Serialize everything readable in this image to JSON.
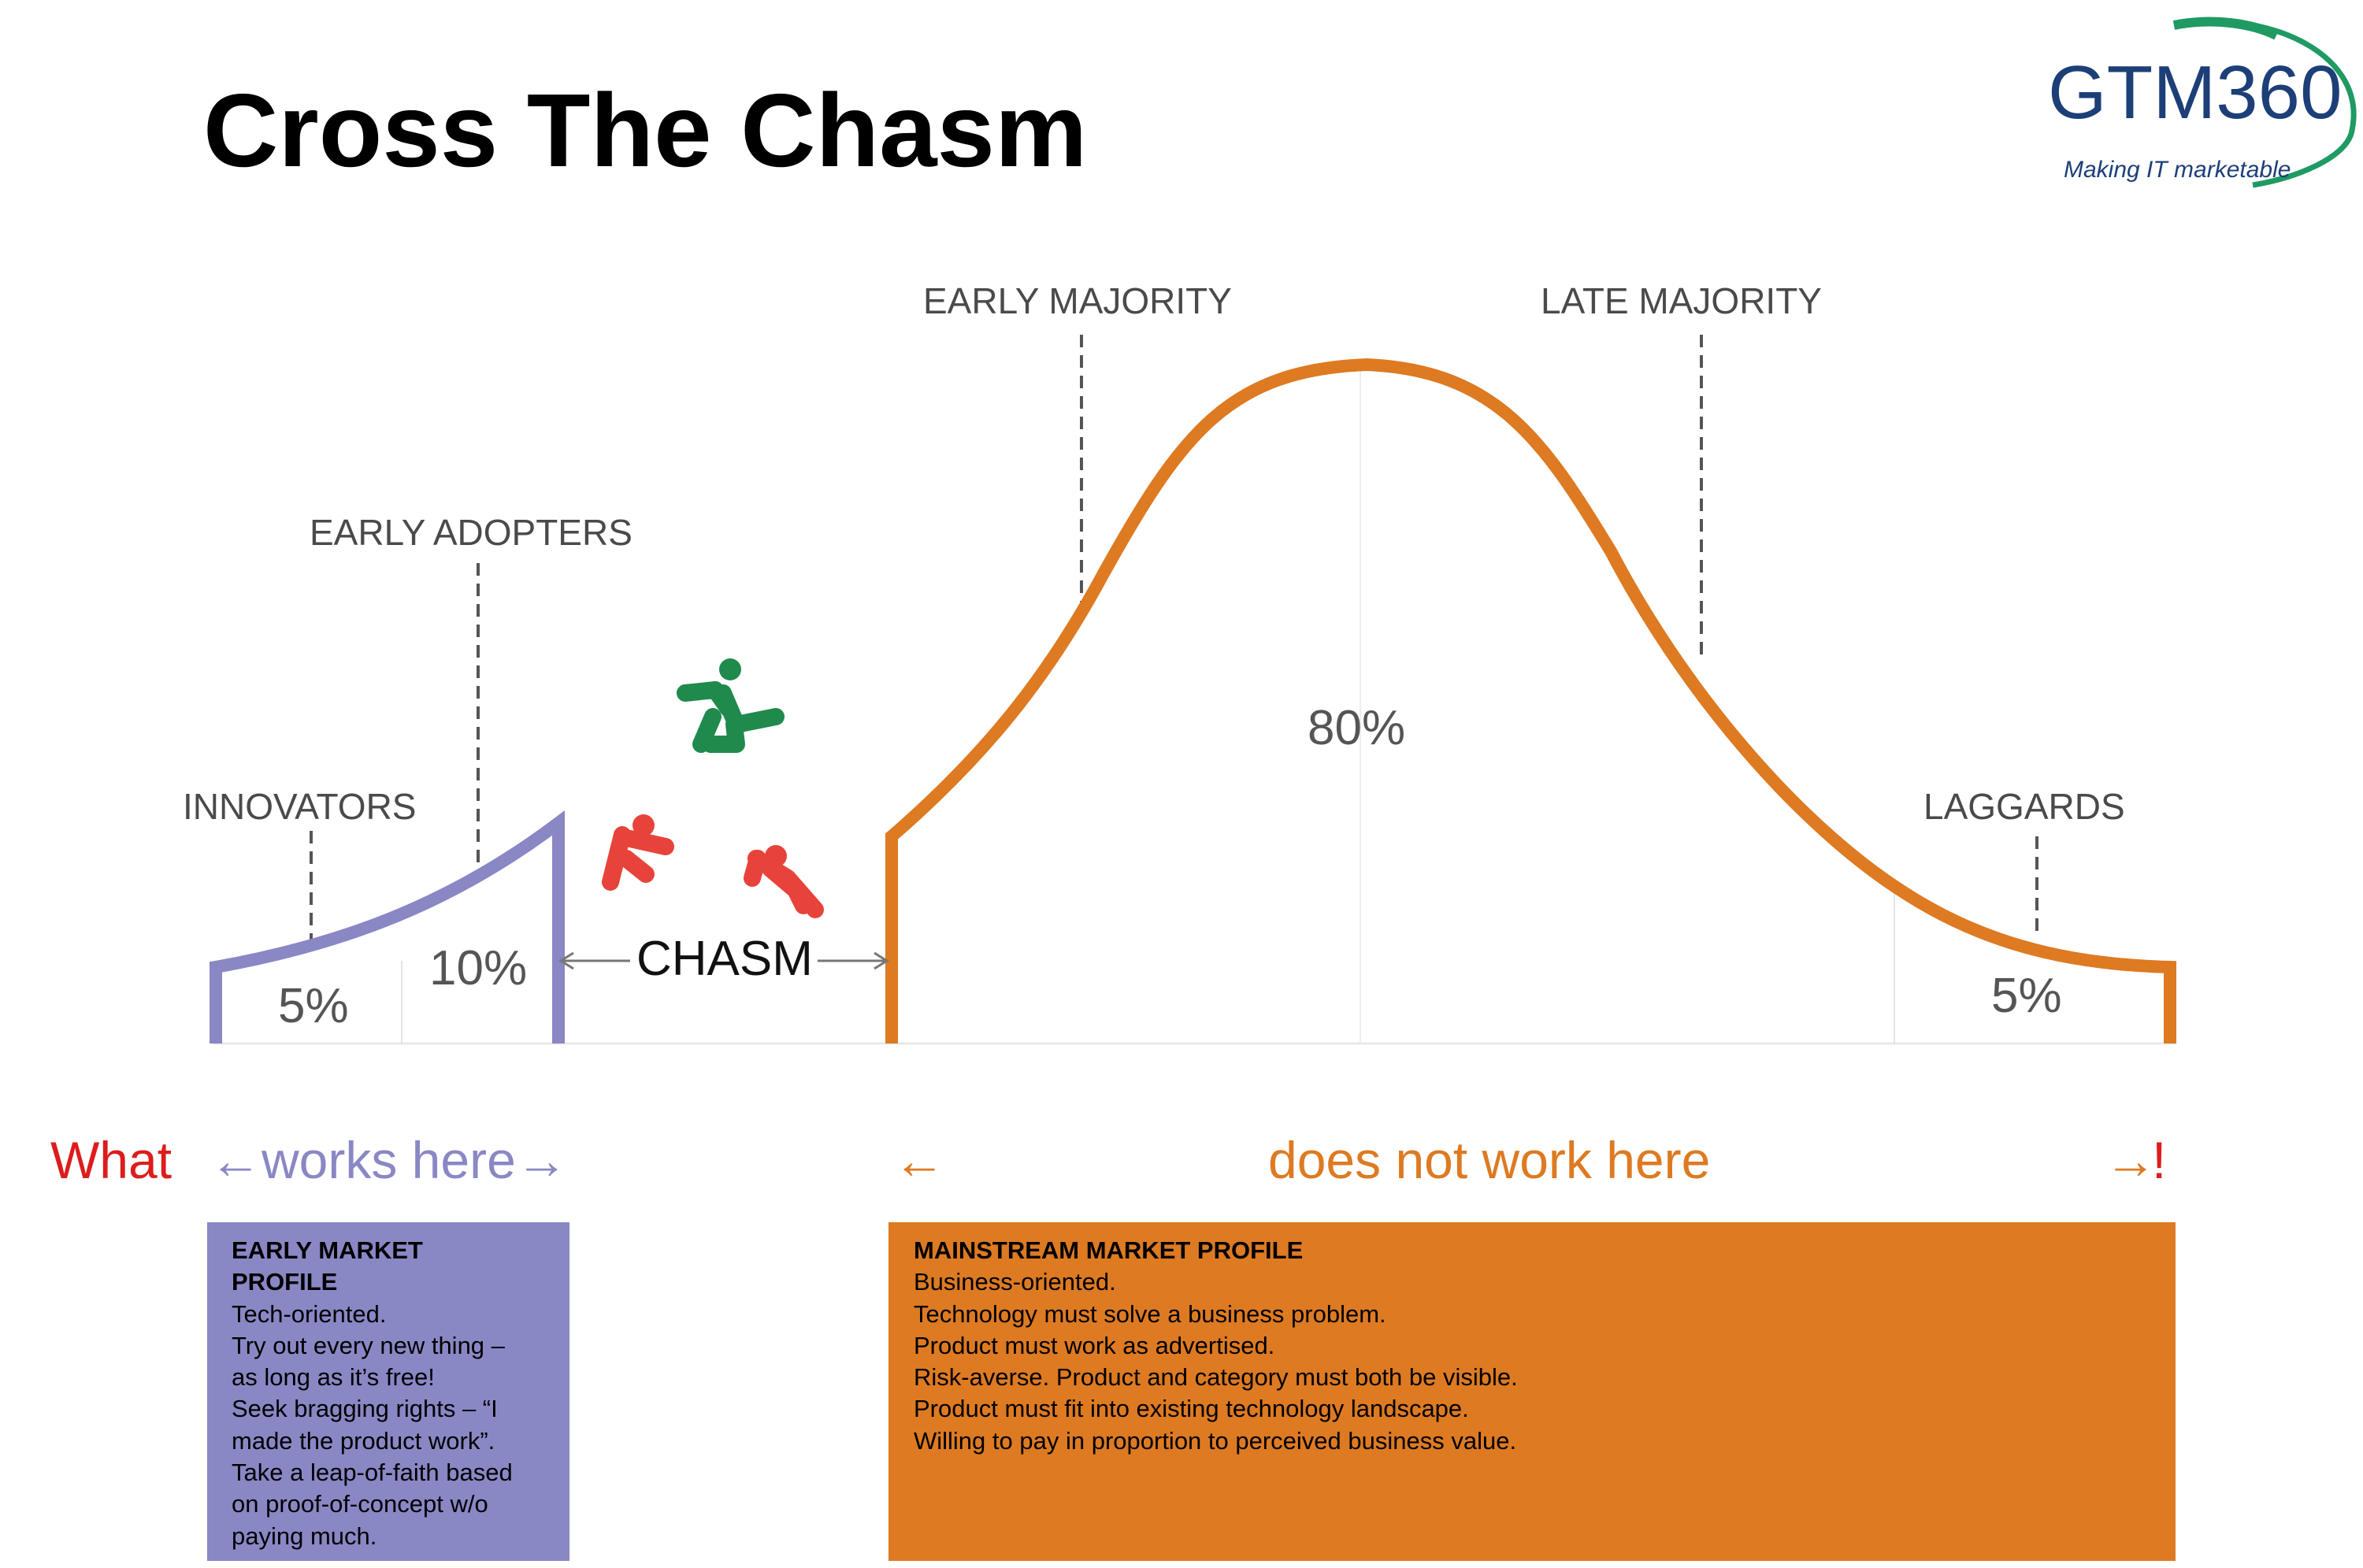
{
  "title": "Cross The Chasm",
  "logo": {
    "wordmark": "GTM360",
    "tagline": "Making IT marketable"
  },
  "colors": {
    "early": "#8a87c5",
    "mainstream": "#dd7a22",
    "emphasis": "#dd1c1c",
    "leaper": "#1f8a4c",
    "faller": "#e8433a"
  },
  "segments": {
    "innovators": "INNOVATORS",
    "early_adopters": "EARLY ADOPTERS",
    "early_majority": "EARLY MAJORITY",
    "late_majority": "LATE MAJORITY",
    "laggards": "LAGGARDS"
  },
  "percentages": {
    "innovators": "5%",
    "early_adopters": "10%",
    "majority": "80%",
    "laggards": "5%"
  },
  "chasm_label": "CHASM",
  "figures": [
    "runner-icon",
    "falling-person-icon",
    "falling-person-icon"
  ],
  "captions": {
    "what": "What",
    "works": "←works here→",
    "left_arrow": "←",
    "not_work": "does not work here",
    "right_arrow": "→",
    "bang": "!"
  },
  "early_panel": {
    "heading": [
      "EARLY MARKET",
      "PROFILE"
    ],
    "lines": [
      "Tech-oriented.",
      "Try out every new thing –",
      "as long as it’s free!",
      "Seek bragging rights – “I",
      "made the product work”.",
      "Take a leap-of-faith based",
      "on proof-of-concept w/o",
      "paying much."
    ]
  },
  "main_panel": {
    "heading": "MAINSTREAM MARKET PROFILE",
    "lines": [
      "Business-oriented.",
      "Technology must solve a business problem.",
      "Product must work as advertised.",
      "Risk-averse. Product  and category must both be visible.",
      "Product must fit into existing technology landscape.",
      "Willing to pay in proportion to perceived business value."
    ]
  }
}
